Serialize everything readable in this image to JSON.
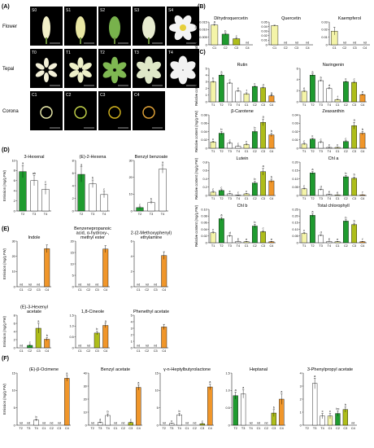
{
  "panel_labels": [
    "(A)",
    "(B)",
    "(C)",
    "(D)",
    "(E)",
    "(F)"
  ],
  "photo_panel": {
    "row_labels": [
      "Flower",
      "Tepal",
      "Corona"
    ],
    "rows": [
      [
        "S0",
        "S1",
        "S2",
        "S3",
        "S4"
      ],
      [
        "T0",
        "T1",
        "T2",
        "T3",
        "T4"
      ],
      [
        "C1",
        "C2",
        "C3",
        "C4"
      ]
    ]
  },
  "colors": {
    "C1": "#f4f4a8",
    "C2": "#1f9b2f",
    "C3": "#aebd1a",
    "C4": "#f0962a",
    "T1": "#f4f4a8",
    "T2": "#1f9b2f",
    "T3": "#ffffff",
    "T4": "#ffffff"
  },
  "chart_data": [
    {
      "id": "B1",
      "type": "bar",
      "title": "Dihydroquercetin",
      "ylabel": "Relative content (mg/g FW)",
      "ylim": [
        0,
        0.015
      ],
      "yticks": [
        "0",
        "0.005",
        "0.010",
        "0.015"
      ],
      "categories": [
        "C1",
        "C2",
        "C3",
        "C4"
      ],
      "values": [
        0.013,
        0.007,
        0.004,
        0
      ],
      "errors": [
        0.0006,
        0.0006,
        0.0004,
        0
      ],
      "letters": [
        "a",
        "b",
        "c",
        "nd"
      ]
    },
    {
      "id": "B2",
      "type": "bar",
      "title": "Quercetin",
      "ylabel": "",
      "ylim": [
        0,
        0.05
      ],
      "yticks": [
        "0",
        "0.01",
        "0.02",
        "0.03",
        "0.04",
        "0.05"
      ],
      "categories": [
        "C1",
        "C2",
        "C3",
        "C4"
      ],
      "values": [
        0.042,
        0,
        0,
        0
      ],
      "errors": [
        0.001,
        0,
        0,
        0
      ],
      "letters": [
        "",
        "nd",
        "nd",
        "nd"
      ]
    },
    {
      "id": "B3",
      "type": "bar",
      "title": "Kaempferol",
      "ylabel": "",
      "ylim": [
        0,
        0.03
      ],
      "yticks": [
        "0",
        "0.01",
        "0.02",
        "0.03"
      ],
      "categories": [
        "C1",
        "C2",
        "C3",
        "C4"
      ],
      "values": [
        0.018,
        0,
        0,
        0
      ],
      "errors": [
        0.005,
        0,
        0,
        0
      ],
      "letters": [
        "",
        "nd",
        "nd",
        "nd"
      ]
    },
    {
      "id": "C1",
      "type": "bar",
      "title": "Rutin",
      "ylabel": "Relative content (mg/g FW)",
      "ylim": [
        0,
        5
      ],
      "yticks": [
        "0",
        "1",
        "2",
        "3",
        "4",
        "5"
      ],
      "categories": [
        "T1",
        "T2",
        "T3",
        "T4",
        "C1",
        "C2",
        "C3",
        "C4"
      ],
      "values": [
        3.0,
        4.0,
        2.8,
        1.6,
        1.2,
        2.3,
        2.1,
        0.9
      ],
      "errors": [
        0.15,
        0.15,
        0.12,
        0.1,
        0.15,
        0.1,
        0.1,
        0.1
      ],
      "letters": [
        "b",
        "a",
        "c",
        "e",
        "f",
        "c",
        "d",
        "g"
      ]
    },
    {
      "id": "C2",
      "type": "bar",
      "title": "Naringenin",
      "ylabel": "",
      "ylim": [
        0,
        6
      ],
      "yticks": [
        "0",
        "2",
        "4",
        "6"
      ],
      "categories": [
        "T1",
        "T2",
        "T3",
        "T4",
        "C1",
        "C2",
        "C3",
        "C4"
      ],
      "values": [
        1.9,
        4.8,
        3.8,
        2.4,
        0.4,
        3.6,
        3.5,
        1.3
      ],
      "errors": [
        0.15,
        0.2,
        0.15,
        0.15,
        0.1,
        0.15,
        0.15,
        0.1
      ],
      "letters": [
        "e",
        "a",
        "b",
        "d",
        "f",
        "c",
        "c",
        "e"
      ]
    },
    {
      "id": "C3",
      "type": "bar",
      "title": "β-Carotene",
      "ylabel": "Relative content (mg/g FW)",
      "ylim": [
        0,
        0.08
      ],
      "yticks": [
        "0",
        "0.02",
        "0.04",
        "0.06",
        "0.08"
      ],
      "categories": [
        "T1",
        "T2",
        "T3",
        "T4",
        "C1",
        "C2",
        "C3",
        "C4"
      ],
      "values": [
        0.015,
        0.036,
        0.012,
        0.005,
        0.009,
        0.04,
        0.062,
        0.032
      ],
      "errors": [
        0.002,
        0.004,
        0.002,
        0.001,
        0.002,
        0.004,
        0.008,
        0.004
      ],
      "letters": [
        "c",
        "b",
        "c",
        "c",
        "c",
        "b",
        "a",
        "b"
      ]
    },
    {
      "id": "C4",
      "type": "bar",
      "title": "Zeaxanthin",
      "ylabel": "",
      "ylim": [
        0,
        0.04
      ],
      "yticks": [
        "0",
        "0.01",
        "0.02",
        "0.03",
        "0.04"
      ],
      "categories": [
        "T1",
        "T2",
        "T3",
        "T4",
        "C1",
        "C2",
        "C3",
        "C4"
      ],
      "values": [
        0.005,
        0.011,
        0.007,
        0.001,
        0.001,
        0.008,
        0.027,
        0.018
      ],
      "errors": [
        0.001,
        0.001,
        0.001,
        0.0005,
        0.0005,
        0.001,
        0.004,
        0.002
      ],
      "letters": [
        "c",
        "c",
        "c",
        "c",
        "c",
        "c",
        "a",
        "b"
      ]
    },
    {
      "id": "C5",
      "type": "bar",
      "title": "Lutein",
      "ylabel": "Relative content (mg/g FW)",
      "ylim": [
        0,
        0.8
      ],
      "yticks": [
        "0",
        "0.2",
        "0.4",
        "0.6",
        "0.8"
      ],
      "categories": [
        "T1",
        "T2",
        "T3",
        "T4",
        "C1",
        "C2",
        "C3",
        "C4"
      ],
      "values": [
        0.08,
        0.12,
        0.04,
        0.01,
        0.04,
        0.3,
        0.57,
        0.35
      ],
      "errors": [
        0.02,
        0.02,
        0.01,
        0.005,
        0.01,
        0.04,
        0.08,
        0.04
      ],
      "letters": [
        "c",
        "c",
        "c",
        "c",
        "c",
        "b",
        "a",
        "b"
      ]
    },
    {
      "id": "C6",
      "type": "bar",
      "title": "Chl a",
      "ylabel": "",
      "ylim": [
        0,
        0.2
      ],
      "yticks": [
        "0",
        "0.05",
        "0.10",
        "0.15",
        "0.20"
      ],
      "categories": [
        "T1",
        "T2",
        "T3",
        "T4",
        "C1",
        "C2",
        "C3",
        "C4"
      ],
      "values": [
        0.04,
        0.135,
        0.035,
        0.007,
        0.004,
        0.112,
        0.103,
        0.004
      ],
      "errors": [
        0.004,
        0.008,
        0.004,
        0.002,
        0.001,
        0.008,
        0.008,
        0.001
      ],
      "letters": [
        "c",
        "a",
        "d",
        "e",
        "e",
        "b",
        "b",
        "f"
      ]
    },
    {
      "id": "C7",
      "type": "bar",
      "title": "Chl b",
      "ylabel": "Relative content (mg/g FW)",
      "ylim": [
        0,
        0.1
      ],
      "yticks": [
        "0",
        "0.02",
        "0.04",
        "0.06",
        "0.08",
        "0.10"
      ],
      "categories": [
        "T1",
        "T2",
        "T3",
        "T4",
        "C1",
        "C2",
        "C3",
        "C4"
      ],
      "values": [
        0.03,
        0.072,
        0.02,
        0.004,
        0.003,
        0.05,
        0.033,
        0.003
      ],
      "errors": [
        0.003,
        0.005,
        0.003,
        0.001,
        0.001,
        0.005,
        0.003,
        0.001
      ],
      "letters": [
        "c",
        "a",
        "d",
        "e",
        "e",
        "b",
        "c",
        "e"
      ]
    },
    {
      "id": "C8",
      "type": "bar",
      "title": "Total chlorophyll",
      "ylabel": "",
      "ylim": [
        0,
        0.25
      ],
      "yticks": [
        "0",
        "0.05",
        "0.10",
        "0.15",
        "0.20",
        "0.25"
      ],
      "categories": [
        "T1",
        "T2",
        "T3",
        "T4",
        "C1",
        "C2",
        "C3",
        "C4"
      ],
      "values": [
        0.07,
        0.205,
        0.055,
        0.01,
        0.008,
        0.162,
        0.136,
        0.008
      ],
      "errors": [
        0.006,
        0.012,
        0.005,
        0.002,
        0.002,
        0.01,
        0.01,
        0.002
      ],
      "letters": [
        "c",
        "a",
        "d",
        "e",
        "e",
        "b",
        "b",
        "f"
      ]
    },
    {
      "id": "D1",
      "type": "bar",
      "title": "3-Hexenal",
      "ylabel": "Emission (mg/g FW)",
      "ylim": [
        0,
        10
      ],
      "yticks": [
        "0",
        "2",
        "4",
        "6",
        "8",
        "10"
      ],
      "categories": [
        "T2",
        "T3",
        "T4"
      ],
      "values": [
        7.8,
        6.0,
        4.3
      ],
      "errors": [
        1.2,
        1.0,
        1.0
      ],
      "letters": [
        "a",
        "ab",
        "c"
      ]
    },
    {
      "id": "D2",
      "type": "bar",
      "title": "(E)-2-Hexena",
      "ylabel": "",
      "ylim": [
        0,
        8
      ],
      "yticks": [
        "0",
        "2",
        "4",
        "6",
        "8"
      ],
      "categories": [
        "T2",
        "T3",
        "T4"
      ],
      "values": [
        5.8,
        4.3,
        2.6
      ],
      "errors": [
        1.2,
        0.6,
        0.5
      ],
      "letters": [
        "a",
        "b",
        "c"
      ]
    },
    {
      "id": "D3",
      "type": "bar",
      "title": "Benzyl benzoate",
      "ylabel": "",
      "ylim": [
        0,
        30
      ],
      "yticks": [
        "0",
        "10",
        "20",
        "30"
      ],
      "categories": [
        "T2",
        "T3",
        "T4"
      ],
      "values": [
        2.0,
        5.0,
        25.0
      ],
      "errors": [
        0.5,
        0.8,
        2.5
      ],
      "letters": [
        "c",
        "b",
        "a"
      ]
    },
    {
      "id": "E1",
      "type": "bar",
      "title": "Indole",
      "ylabel": "Emission (mg/g FW)",
      "ylim": [
        0,
        30
      ],
      "yticks": [
        "0",
        "10",
        "20",
        "30"
      ],
      "categories": [
        "C1",
        "C2",
        "C3",
        "C4"
      ],
      "values": [
        0,
        0,
        0,
        25
      ],
      "errors": [
        0,
        0,
        0,
        2.5
      ],
      "letters": [
        "nd",
        "nd",
        "nd",
        ""
      ]
    },
    {
      "id": "E2",
      "type": "bar",
      "title": "Benzenepropanoic acid, α-hydroxy-, methyl ester",
      "ylabel": "",
      "ylim": [
        0,
        20
      ],
      "yticks": [
        "0",
        "5",
        "10",
        "15",
        "20"
      ],
      "categories": [
        "C1",
        "C2",
        "C3",
        "C4"
      ],
      "values": [
        0,
        0,
        0,
        16.5
      ],
      "errors": [
        0,
        0,
        0,
        1.5
      ],
      "letters": [
        "nd",
        "nd",
        "nd",
        ""
      ]
    },
    {
      "id": "E3",
      "type": "bar",
      "title": "2-(2-Methoxyphenyl) ethylamine",
      "ylabel": "",
      "ylim": [
        0,
        6
      ],
      "yticks": [
        "0",
        "2",
        "4",
        "6"
      ],
      "categories": [
        "C1",
        "C2",
        "C3",
        "C4"
      ],
      "values": [
        0,
        0,
        0,
        4.1
      ],
      "errors": [
        0,
        0,
        0,
        0.5
      ],
      "letters": [
        "nd",
        "nd",
        "nd",
        ""
      ]
    },
    {
      "id": "E4",
      "type": "bar",
      "title": "(E)-3-Hexenyl acetate",
      "ylabel": "Emission (mg/g FW)",
      "ylim": [
        0,
        8
      ],
      "yticks": [
        "0",
        "2",
        "4",
        "6",
        "8"
      ],
      "categories": [
        "C1",
        "C2",
        "C3",
        "C4"
      ],
      "values": [
        0,
        0.6,
        4.8,
        2.1
      ],
      "errors": [
        0,
        0.2,
        1.2,
        0.4
      ],
      "letters": [
        "nd",
        "c",
        "a",
        "b"
      ]
    },
    {
      "id": "E5",
      "type": "bar",
      "title": "1,8-Cineole",
      "ylabel": "",
      "ylim": [
        0,
        1.5
      ],
      "yticks": [
        "0",
        "0.5",
        "1.0",
        "1.5"
      ],
      "categories": [
        "C1",
        "C2",
        "C3",
        "C4"
      ],
      "values": [
        0,
        0,
        0.68,
        1.03
      ],
      "errors": [
        0,
        0,
        0.08,
        0.1
      ],
      "letters": [
        "nd",
        "nd",
        "b",
        "a"
      ]
    },
    {
      "id": "E6",
      "type": "bar",
      "title": "Phenethyl acetate",
      "ylabel": "",
      "ylim": [
        0,
        5
      ],
      "yticks": [
        "0",
        "1",
        "2",
        "3",
        "4",
        "5"
      ],
      "categories": [
        "C1",
        "C2",
        "C3",
        "C4"
      ],
      "values": [
        0,
        0,
        0,
        3.2
      ],
      "errors": [
        0,
        0,
        0,
        0.4
      ],
      "letters": [
        "nd",
        "nd",
        "nd",
        ""
      ]
    },
    {
      "id": "F1",
      "type": "bar",
      "title": "(E)-β-Ocimene",
      "ylabel": "Emission (mg/g FW)",
      "ylim": [
        0,
        15
      ],
      "yticks": [
        "0",
        "5",
        "10",
        "15"
      ],
      "categories": [
        "T2",
        "T3",
        "T4",
        "C1",
        "C2",
        "C3",
        "C4"
      ],
      "values": [
        0,
        0,
        1.5,
        0,
        0,
        0,
        13.5
      ],
      "errors": [
        0,
        0,
        0.3,
        0,
        0,
        0,
        0.8
      ],
      "letters": [
        "nd",
        "nd",
        "b",
        "nd",
        "nd",
        "nd",
        "a"
      ]
    },
    {
      "id": "F2",
      "type": "bar",
      "title": "Benzyl acetate",
      "ylabel": "",
      "ylim": [
        0,
        40
      ],
      "yticks": [
        "0",
        "10",
        "20",
        "30",
        "40"
      ],
      "categories": [
        "T2",
        "T3",
        "T4",
        "C1",
        "C2",
        "C3",
        "C4"
      ],
      "values": [
        0,
        2.0,
        7.5,
        0,
        0,
        2.0,
        29.0
      ],
      "errors": [
        0,
        0.5,
        1.2,
        0,
        0,
        0.5,
        2.0
      ],
      "letters": [
        "nd",
        "d",
        "b",
        "nd",
        "nd",
        "c",
        "a"
      ]
    },
    {
      "id": "F3",
      "type": "bar",
      "title": "γ-n-Heptylbutyrolactone",
      "ylabel": "",
      "ylim": [
        0,
        15
      ],
      "yticks": [
        "0",
        "5",
        "10",
        "15"
      ],
      "categories": [
        "T2",
        "T3",
        "T4",
        "C1",
        "C2",
        "C3",
        "C4"
      ],
      "values": [
        0,
        0.5,
        3.0,
        0,
        0,
        0.4,
        11.0
      ],
      "errors": [
        0,
        0.1,
        0.4,
        0,
        0,
        0.1,
        0.8
      ],
      "letters": [
        "nd",
        "c",
        "b",
        "nd",
        "nd",
        "c",
        "a"
      ]
    },
    {
      "id": "F4",
      "type": "bar",
      "title": "Heptanal",
      "ylabel": "",
      "ylim": [
        0,
        1.5
      ],
      "yticks": [
        "0",
        "0.5",
        "1.0",
        "1.5"
      ],
      "categories": [
        "T2",
        "T3",
        "T4",
        "C1",
        "C2",
        "C3",
        "C4"
      ],
      "values": [
        0.85,
        0.9,
        0,
        0,
        0,
        0.35,
        0.75
      ],
      "errors": [
        0.1,
        0.12,
        0,
        0,
        0,
        0.1,
        0.15
      ],
      "letters": [
        "a",
        "a",
        "nd",
        "nd",
        "nd",
        "b",
        "a"
      ]
    },
    {
      "id": "F5",
      "type": "bar",
      "title": "3-Phenylpropyl acetate",
      "ylabel": "",
      "ylim": [
        0,
        4
      ],
      "yticks": [
        "0",
        "1",
        "2",
        "3",
        "4"
      ],
      "categories": [
        "T2",
        "T3",
        "T4",
        "C1",
        "C2",
        "C3",
        "C4"
      ],
      "values": [
        0,
        3.2,
        0.7,
        0.7,
        0.9,
        1.2,
        0
      ],
      "errors": [
        0,
        0.4,
        0.2,
        0.2,
        0.2,
        0.2,
        0
      ],
      "letters": [
        "",
        "a",
        "c",
        "c",
        "bc",
        "b",
        "nd"
      ]
    }
  ]
}
